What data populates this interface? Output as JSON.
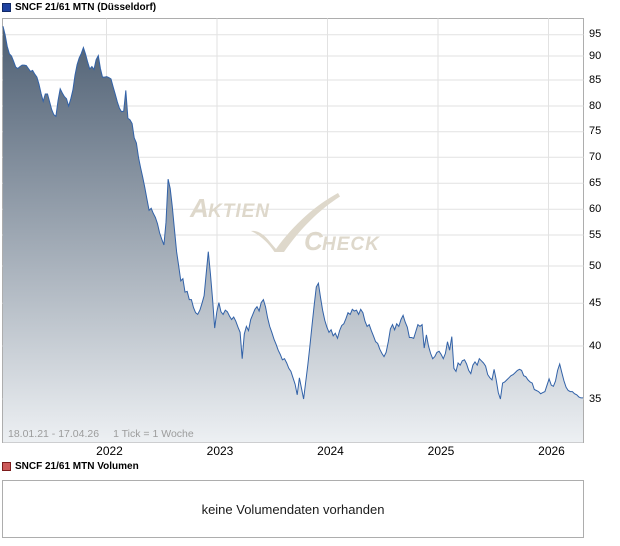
{
  "header": {
    "title": "SNCF 21/61 MTN (Düsseldorf)",
    "marker_color": "#1e42a0",
    "marker_border": "#122a66"
  },
  "chart_data": {
    "type": "area",
    "title": "SNCF 21/61 MTN (Düsseldorf)",
    "x_unit": "weeks since 18.01.21",
    "date_range": "18.01.21 - 17.04.26",
    "tick_note": "1 Tick = 1 Woche",
    "x_tick_labels": [
      "2022",
      "2023",
      "2024",
      "2025",
      "2026"
    ],
    "y_tick_labels": [
      95,
      90,
      85,
      80,
      75,
      70,
      65,
      60,
      55,
      50,
      45,
      40,
      35
    ],
    "y_scale": "nonlinear",
    "ylim": [
      33,
      98
    ],
    "grid": true,
    "legend_position": "top-left",
    "values": [
      97.0,
      95.0,
      92.3,
      90.5,
      90.0,
      88.9,
      87.7,
      87.4,
      87.8,
      88.1,
      88.1,
      88.0,
      87.4,
      86.8,
      87.0,
      86.2,
      85.6,
      84.2,
      82.4,
      80.9,
      82.3,
      82.3,
      80.8,
      79.3,
      78.3,
      78.0,
      81.0,
      83.3,
      82.5,
      81.8,
      81.4,
      80.0,
      81.3,
      83.1,
      86.0,
      88.2,
      89.6,
      90.6,
      92.0,
      90.4,
      88.7,
      87.3,
      87.8,
      87.2,
      89.2,
      90.1,
      87.4,
      85.6,
      85.6,
      85.7,
      85.5,
      85.2,
      83.7,
      82.3,
      80.8,
      79.6,
      78.9,
      79.0,
      83.0,
      77.6,
      77.3,
      76.6,
      73.8,
      72.8,
      70.0,
      68.0,
      66.2,
      64.2,
      62.0,
      59.8,
      60.2,
      59.2,
      58.4,
      57.2,
      55.4,
      54.3,
      53.4,
      57.5,
      65.8,
      64.0,
      60.5,
      56.0,
      52.3,
      50.0,
      48.0,
      48.3,
      46.5,
      46.6,
      45.5,
      45.5,
      44.5,
      43.9,
      43.7,
      44.2,
      45.0,
      46.0,
      49.0,
      52.3,
      49.0,
      45.5,
      42.1,
      44.0,
      45.1,
      44.0,
      43.7,
      44.2,
      44.0,
      43.5,
      43.1,
      43.4,
      42.9,
      42.2,
      41.6,
      38.8,
      41.4,
      42.3,
      41.8,
      43.1,
      43.7,
      44.3,
      44.6,
      44.1,
      45.1,
      45.5,
      44.6,
      43.3,
      42.3,
      41.6,
      40.8,
      40.2,
      39.6,
      39.2,
      38.7,
      38.8,
      38.4,
      37.9,
      37.6,
      37.0,
      36.4,
      35.4,
      37.0,
      36.0,
      35.0,
      36.6,
      38.2,
      40.0,
      42.5,
      44.8,
      47.2,
      47.7,
      45.8,
      44.2,
      43.0,
      42.2,
      41.6,
      41.9,
      41.2,
      41.5,
      40.9,
      41.8,
      42.4,
      42.6,
      43.2,
      43.9,
      43.7,
      44.3,
      44.1,
      44.2,
      43.7,
      44.3,
      43.9,
      42.9,
      42.3,
      42.5,
      41.8,
      41.2,
      40.5,
      40.3,
      39.7,
      39.3,
      39.0,
      39.4,
      40.5,
      42.0,
      42.5,
      41.9,
      42.6,
      42.3,
      43.1,
      43.6,
      42.8,
      42.2,
      41.0,
      41.0,
      40.9,
      41.7,
      42.5,
      42.3,
      42.5,
      39.8,
      41.3,
      40.0,
      39.3,
      38.8,
      39.0,
      39.4,
      39.5,
      39.2,
      38.8,
      39.3,
      40.5,
      39.6,
      41.1,
      37.9,
      37.6,
      38.4,
      38.2,
      38.6,
      38.7,
      38.3,
      37.7,
      37.4,
      38.2,
      38.5,
      38.2,
      38.8,
      38.6,
      38.4,
      38.1,
      37.3,
      37.0,
      36.8,
      37.8,
      36.8,
      35.6,
      35.0,
      36.5,
      36.6,
      36.8,
      37.0,
      37.2,
      37.3,
      37.5,
      37.7,
      37.8,
      37.7,
      37.2,
      37.1,
      36.8,
      36.6,
      36.5,
      35.9,
      35.8,
      35.7,
      35.5,
      35.6,
      35.7,
      36.3,
      36.9,
      36.3,
      36.2,
      36.7,
      37.7,
      38.3,
      37.5,
      36.7,
      36.1,
      35.8,
      35.7,
      35.7,
      35.5,
      35.4,
      35.2,
      35.1,
      35.1
    ]
  },
  "watermark": {
    "part1": "Aktien",
    "part2": "Check",
    "icon": "check-mark",
    "color": "#ded8cb"
  },
  "footer": {
    "date_range": "18.01.21 - 17.04.26",
    "tick_note": "1 Tick = 1 Woche"
  },
  "volume": {
    "title": "SNCF 21/61 MTN Volumen",
    "marker_color": "#cc5a5a",
    "marker_border": "#7c1c1c",
    "message": "keine Volumendaten vorhanden"
  },
  "colors": {
    "line": "#3262a8",
    "fill_top": "#4d5e72",
    "fill_bottom": "#edf0f3",
    "grid": "#e2e2e2",
    "border": "#adadad",
    "axis_text": "#000000",
    "footer_text": "#9c9c9c"
  }
}
